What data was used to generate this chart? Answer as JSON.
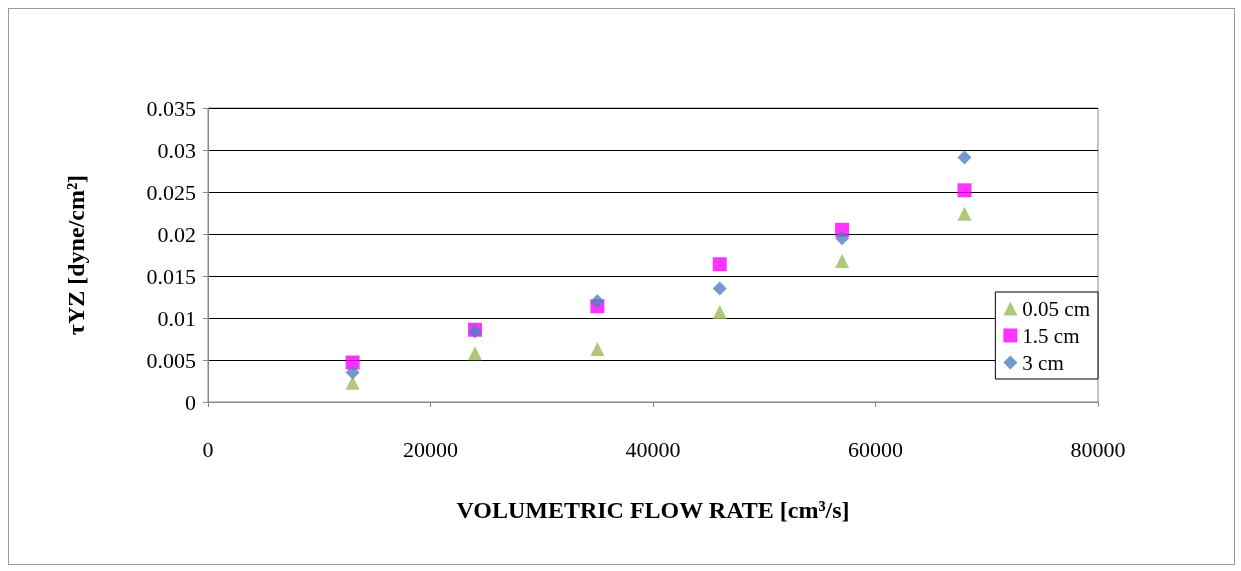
{
  "chart_data": {
    "type": "scatter",
    "xlabel": "VOLUMETRIC FLOW RATE [cm³/s]",
    "ylabel": "τYZ [dyne/cm²]",
    "x": [
      13000,
      24000,
      35000,
      46000,
      57000,
      68000
    ],
    "xlim": [
      0,
      80000
    ],
    "xticks": [
      0,
      20000,
      40000,
      60000,
      80000
    ],
    "ylim": [
      0,
      0.035
    ],
    "yticks": [
      0,
      0.005,
      0.01,
      0.015,
      0.02,
      0.025,
      0.03,
      0.035
    ],
    "grid": "y",
    "legend": "right",
    "series": [
      {
        "name": "0.05 cm",
        "color": "#9bbb59",
        "marker": "triangle",
        "values": [
          0.0023,
          0.0058,
          0.0063,
          0.0107,
          0.0168,
          0.0224
        ]
      },
      {
        "name": "1.5 cm",
        "color": "#ff00ff",
        "marker": "square",
        "values": [
          0.0047,
          0.0086,
          0.0114,
          0.0164,
          0.0205,
          0.0252
        ]
      },
      {
        "name": "3 cm",
        "color": "#4f81bd",
        "marker": "diamond",
        "values": [
          0.0035,
          0.0084,
          0.012,
          0.0135,
          0.0195,
          0.0291
        ]
      }
    ]
  }
}
